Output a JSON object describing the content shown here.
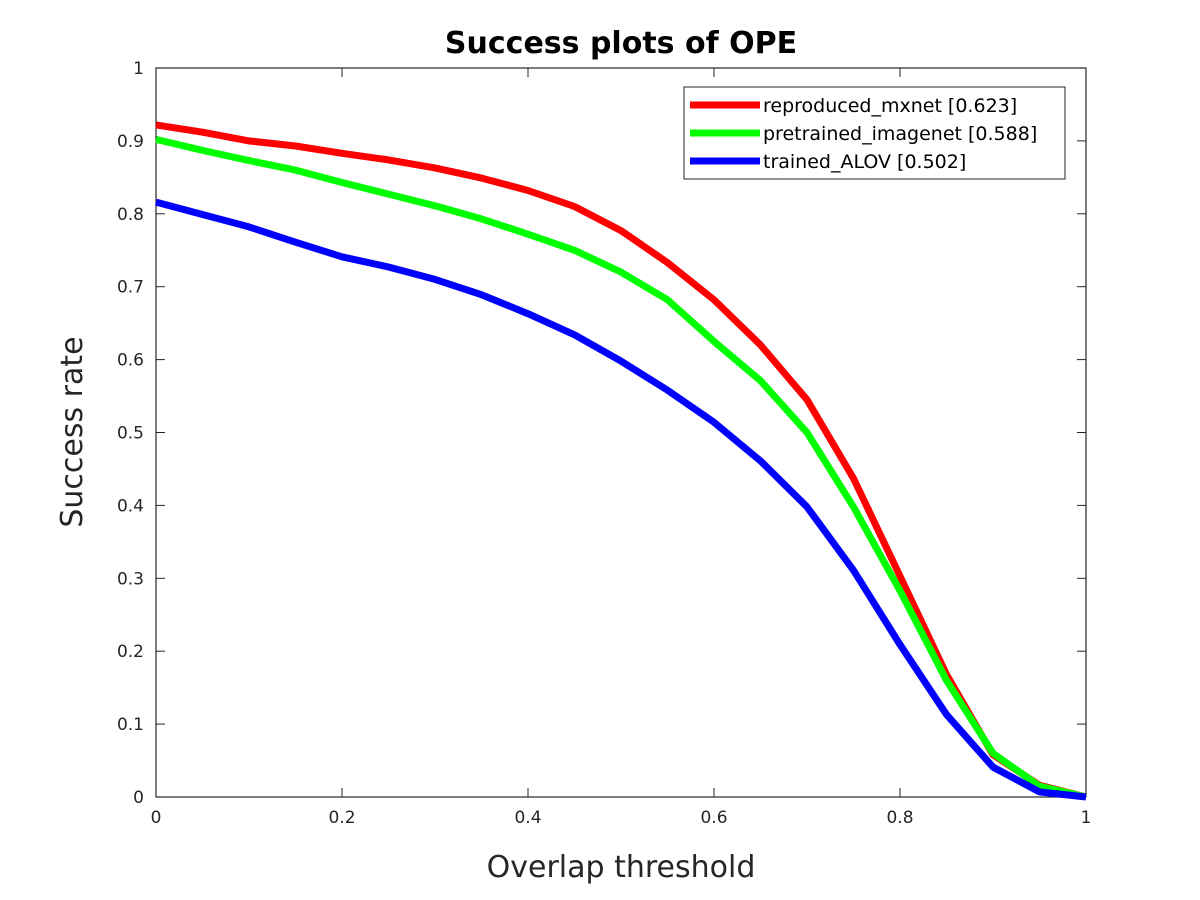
{
  "chart_data": {
    "type": "line",
    "title": "Success plots of OPE",
    "xlabel": "Overlap threshold",
    "ylabel": "Success rate",
    "xlim": [
      0,
      1
    ],
    "ylim": [
      0,
      1
    ],
    "xticks": [
      0,
      0.2,
      0.4,
      0.6,
      0.8,
      1
    ],
    "xtick_labels": [
      "0",
      "0.2",
      "0.4",
      "0.6",
      "0.8",
      "1"
    ],
    "yticks": [
      0,
      0.1,
      0.2,
      0.3,
      0.4,
      0.5,
      0.6,
      0.7,
      0.8,
      0.9,
      1
    ],
    "ytick_labels": [
      "0",
      "0.1",
      "0.2",
      "0.3",
      "0.4",
      "0.5",
      "0.6",
      "0.7",
      "0.8",
      "0.9",
      "1"
    ],
    "grid": false,
    "legend_position": "top-right",
    "x": [
      0,
      0.05,
      0.1,
      0.15,
      0.2,
      0.25,
      0.3,
      0.35,
      0.4,
      0.45,
      0.5,
      0.55,
      0.6,
      0.65,
      0.7,
      0.75,
      0.8,
      0.85,
      0.9,
      0.95,
      1
    ],
    "series": [
      {
        "name": "reproduced_mxnet [0.623]",
        "color": "#ff0000",
        "values": [
          0.922,
          0.912,
          0.9,
          0.893,
          0.883,
          0.874,
          0.863,
          0.849,
          0.832,
          0.81,
          0.777,
          0.733,
          0.682,
          0.62,
          0.545,
          0.437,
          0.303,
          0.168,
          0.058,
          0.016,
          0.0
        ]
      },
      {
        "name": "pretrained_imagenet [0.588]",
        "color": "#00ff00",
        "values": [
          0.902,
          0.887,
          0.873,
          0.86,
          0.843,
          0.827,
          0.811,
          0.793,
          0.772,
          0.75,
          0.72,
          0.682,
          0.625,
          0.571,
          0.5,
          0.398,
          0.283,
          0.16,
          0.06,
          0.015,
          0.0
        ]
      },
      {
        "name": "trained_ALOV [0.502]",
        "color": "#0000ff",
        "values": [
          0.816,
          0.799,
          0.782,
          0.761,
          0.741,
          0.727,
          0.71,
          0.689,
          0.663,
          0.634,
          0.598,
          0.558,
          0.514,
          0.461,
          0.398,
          0.311,
          0.209,
          0.113,
          0.041,
          0.007,
          0.0
        ]
      }
    ]
  }
}
